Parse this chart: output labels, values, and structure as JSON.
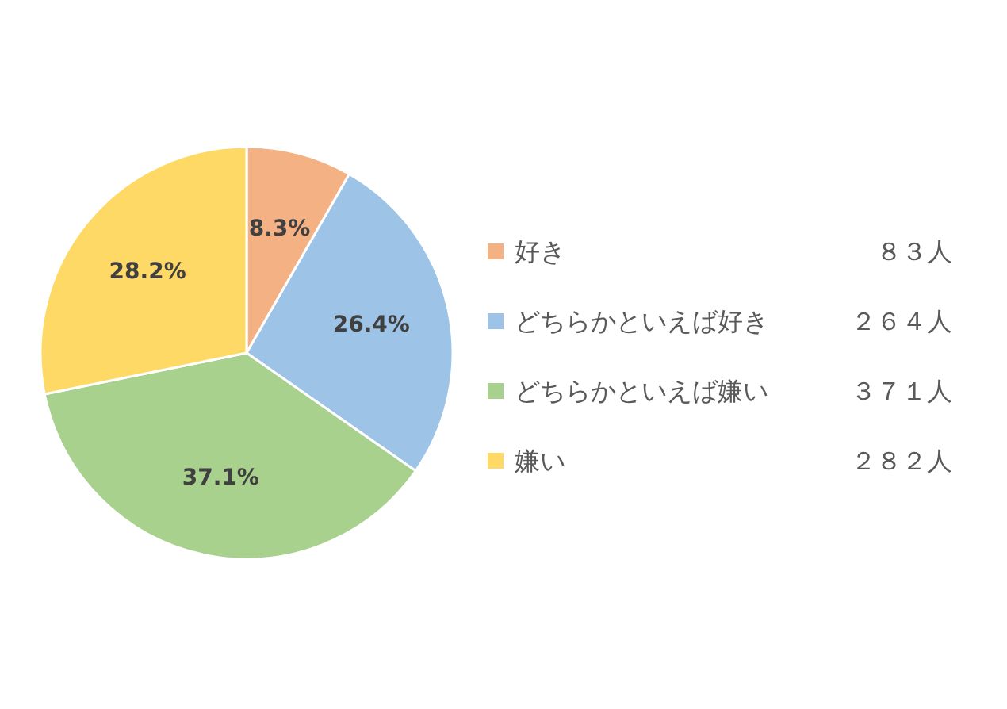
{
  "chart_data": {
    "type": "pie",
    "categories": [
      "好き",
      "どちらかといえば好き",
      "どちらかといえば嫌い",
      "嫌い"
    ],
    "values": [
      8.3,
      26.4,
      37.1,
      28.2
    ],
    "colors": [
      "#f4b183",
      "#9dc3e6",
      "#a9d18e",
      "#ffd966"
    ],
    "value_labels": [
      "8.3%",
      "26.4%",
      "37.1%",
      "28.2%"
    ],
    "annotations": [
      "８３人",
      "２６４人",
      "３７１人",
      "２８２人"
    ],
    "legend": "right"
  }
}
